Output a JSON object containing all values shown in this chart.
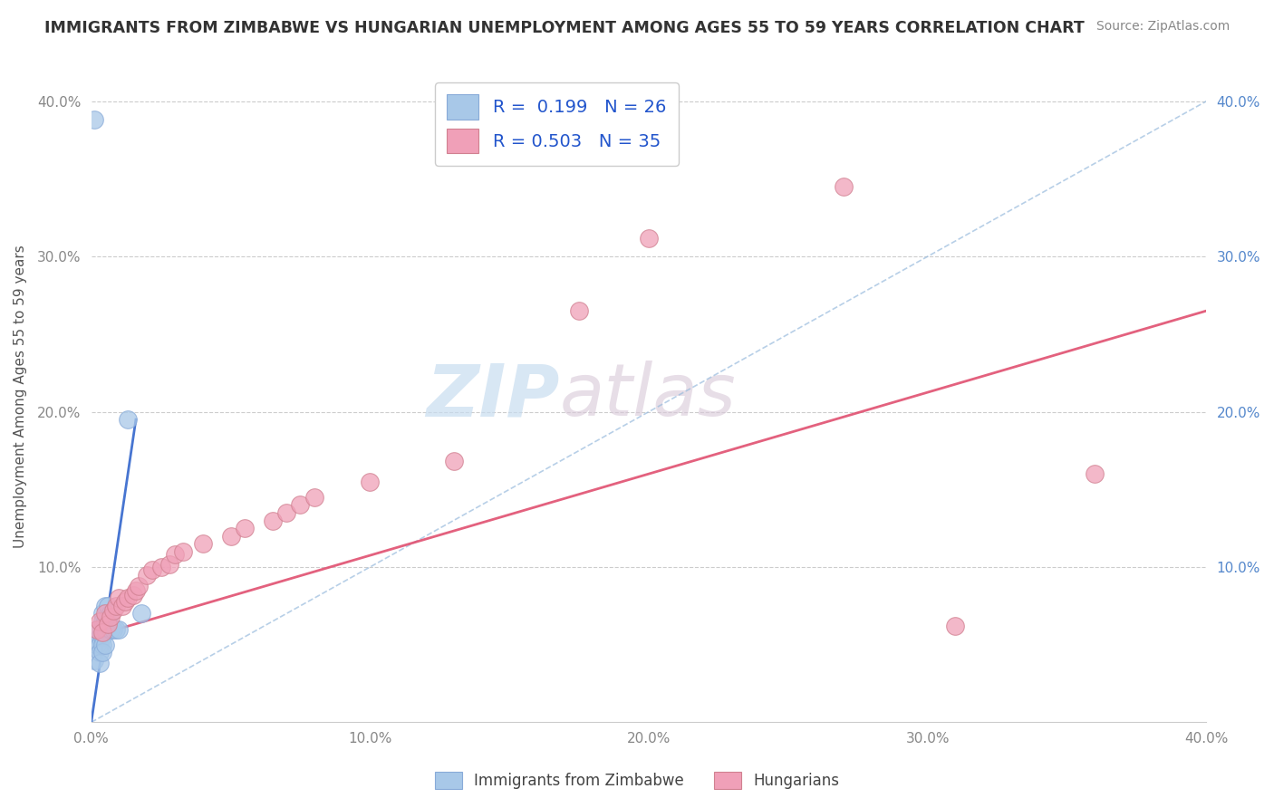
{
  "title": "IMMIGRANTS FROM ZIMBABWE VS HUNGARIAN UNEMPLOYMENT AMONG AGES 55 TO 59 YEARS CORRELATION CHART",
  "source": "Source: ZipAtlas.com",
  "ylabel": "Unemployment Among Ages 55 to 59 years",
  "xlim": [
    0.0,
    0.4
  ],
  "ylim": [
    0.0,
    0.42
  ],
  "xticks": [
    0.0,
    0.1,
    0.2,
    0.3,
    0.4
  ],
  "yticks": [
    0.1,
    0.2,
    0.3,
    0.4
  ],
  "xtick_labels": [
    "0.0%",
    "10.0%",
    "20.0%",
    "30.0%",
    "40.0%"
  ],
  "ytick_labels_left": [
    "10.0%",
    "20.0%",
    "30.0%",
    "40.0%"
  ],
  "ytick_labels_right": [
    "10.0%",
    "20.0%",
    "30.0%",
    "40.0%"
  ],
  "r_zimbabwe": 0.199,
  "n_zimbabwe": 26,
  "r_hungarian": 0.503,
  "n_hungarian": 35,
  "zimbabwe_color": "#a8c8e8",
  "hungarian_color": "#f0a0b8",
  "zimbabwe_line_color": "#3366cc",
  "zimbabwe_dash_color": "#99bbdd",
  "hungarian_line_color": "#e05070",
  "watermark_zip": "ZIP",
  "watermark_atlas": "atlas",
  "background_color": "#ffffff",
  "grid_color": "#cccccc",
  "zimbabwe_scatter_x": [
    0.001,
    0.001,
    0.002,
    0.002,
    0.003,
    0.003,
    0.003,
    0.003,
    0.004,
    0.004,
    0.004,
    0.004,
    0.004,
    0.005,
    0.005,
    0.005,
    0.005,
    0.006,
    0.006,
    0.007,
    0.007,
    0.008,
    0.009,
    0.01,
    0.013,
    0.018
  ],
  "zimbabwe_scatter_y": [
    0.388,
    0.04,
    0.05,
    0.06,
    0.055,
    0.05,
    0.045,
    0.038,
    0.07,
    0.065,
    0.055,
    0.05,
    0.045,
    0.075,
    0.065,
    0.06,
    0.05,
    0.075,
    0.065,
    0.07,
    0.06,
    0.06,
    0.06,
    0.06,
    0.195,
    0.07
  ],
  "hungarian_scatter_x": [
    0.002,
    0.003,
    0.004,
    0.005,
    0.006,
    0.007,
    0.008,
    0.009,
    0.01,
    0.011,
    0.012,
    0.013,
    0.015,
    0.016,
    0.017,
    0.02,
    0.022,
    0.025,
    0.028,
    0.03,
    0.033,
    0.04,
    0.05,
    0.055,
    0.065,
    0.07,
    0.075,
    0.08,
    0.1,
    0.13,
    0.175,
    0.2,
    0.27,
    0.31,
    0.36
  ],
  "hungarian_scatter_y": [
    0.06,
    0.065,
    0.058,
    0.07,
    0.063,
    0.068,
    0.072,
    0.075,
    0.08,
    0.075,
    0.078,
    0.08,
    0.082,
    0.085,
    0.088,
    0.095,
    0.098,
    0.1,
    0.102,
    0.108,
    0.11,
    0.115,
    0.12,
    0.125,
    0.13,
    0.135,
    0.14,
    0.145,
    0.155,
    0.168,
    0.265,
    0.312,
    0.345,
    0.062,
    0.16
  ],
  "zim_solid_line_x": [
    0.0,
    0.016
  ],
  "zim_solid_line_y": [
    0.0,
    0.195
  ],
  "zim_dash_line_x": [
    0.0,
    0.4
  ],
  "zim_dash_line_y": [
    0.0,
    0.4
  ],
  "hun_line_x": [
    0.0,
    0.4
  ],
  "hun_line_y": [
    0.055,
    0.265
  ]
}
